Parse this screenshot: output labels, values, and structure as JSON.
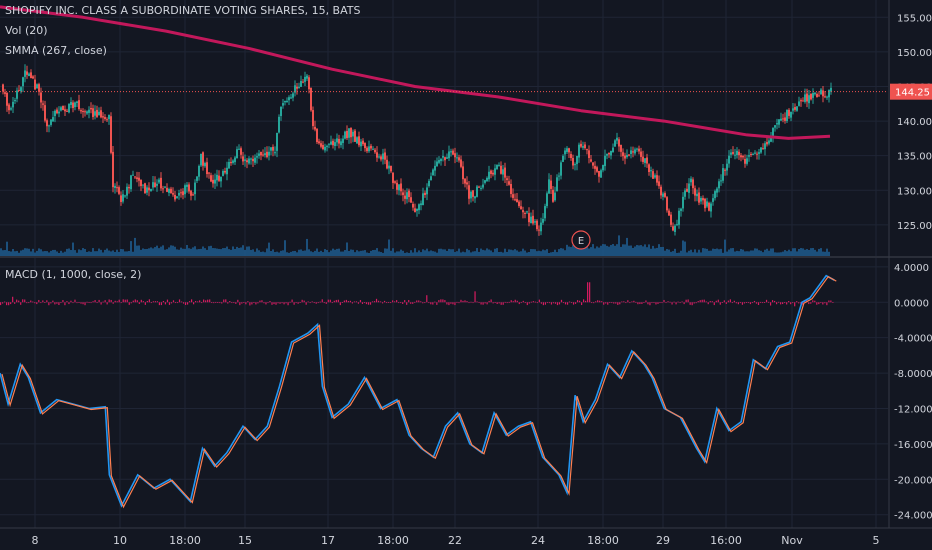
{
  "title": "SHOPIFY INC. CLASS A SUBORDINATE VOTING SHARES, 15, BATS",
  "indicators": {
    "volume": "Vol (20)",
    "smma": "SMMA (267, close)",
    "macd": "MACD (1, 1000, close, 2)"
  },
  "earnings_marker": "E",
  "colors": {
    "background": "#131722",
    "up": "#26a69a",
    "down": "#ef5350",
    "smma": "#c2185b",
    "volume": "#1e5a8c",
    "macd_line": "#2196f3",
    "signal_line": "#ff7f50",
    "histogram": "#d81b60",
    "price_label_bg": "#ef5350",
    "axis_text": "#d1d4dc"
  },
  "chart_data": [
    {
      "type": "candlestick",
      "title": "SHOPIFY INC. CLASS A SUBORDINATE VOTING SHARES, 15, BATS",
      "x_ticks": [
        "8",
        "10",
        "18:00",
        "15",
        "17",
        "18:00",
        "22",
        "24",
        "18:00",
        "29",
        "16:00",
        "Nov",
        "5"
      ],
      "y_ticks": [
        "155.00",
        "150.00",
        "145.00",
        "140.00",
        "135.00",
        "130.00",
        "125.00"
      ],
      "ylim": [
        120.5,
        157.5
      ],
      "last_price": "144.25",
      "close_path": [
        [
          0,
          145.2
        ],
        [
          0.01,
          142.0
        ],
        [
          0.03,
          147.0
        ],
        [
          0.045,
          144.5
        ],
        [
          0.055,
          139.5
        ],
        [
          0.07,
          141.5
        ],
        [
          0.09,
          142.5
        ],
        [
          0.11,
          141.0
        ],
        [
          0.13,
          140.5
        ],
        [
          0.135,
          131.0
        ],
        [
          0.145,
          128.5
        ],
        [
          0.16,
          132.5
        ],
        [
          0.175,
          130.0
        ],
        [
          0.19,
          131.0
        ],
        [
          0.2,
          130.0
        ],
        [
          0.21,
          129.0
        ],
        [
          0.225,
          130.5
        ],
        [
          0.23,
          128.5
        ],
        [
          0.24,
          135.0
        ],
        [
          0.255,
          131.0
        ],
        [
          0.27,
          133.0
        ],
        [
          0.285,
          135.5
        ],
        [
          0.3,
          134.0
        ],
        [
          0.315,
          135.0
        ],
        [
          0.33,
          136.0
        ],
        [
          0.335,
          141.0
        ],
        [
          0.35,
          144.0
        ],
        [
          0.37,
          146.5
        ],
        [
          0.375,
          139.5
        ],
        [
          0.385,
          136.0
        ],
        [
          0.4,
          136.5
        ],
        [
          0.42,
          138.5
        ],
        [
          0.43,
          137.0
        ],
        [
          0.44,
          136.0
        ],
        [
          0.46,
          135.0
        ],
        [
          0.475,
          131.0
        ],
        [
          0.49,
          129.0
        ],
        [
          0.5,
          127.0
        ],
        [
          0.51,
          129.5
        ],
        [
          0.525,
          134.0
        ],
        [
          0.54,
          135.5
        ],
        [
          0.55,
          134.5
        ],
        [
          0.565,
          129.0
        ],
        [
          0.58,
          131.0
        ],
        [
          0.6,
          133.5
        ],
        [
          0.61,
          131.5
        ],
        [
          0.62,
          128.0
        ],
        [
          0.64,
          125.5
        ],
        [
          0.65,
          124.5
        ],
        [
          0.66,
          131.0
        ],
        [
          0.665,
          129.0
        ],
        [
          0.68,
          136.5
        ],
        [
          0.69,
          134.0
        ],
        [
          0.7,
          137.0
        ],
        [
          0.71,
          135.0
        ],
        [
          0.72,
          132.0
        ],
        [
          0.73,
          135.0
        ],
        [
          0.74,
          137.5
        ],
        [
          0.75,
          135.0
        ],
        [
          0.765,
          135.5
        ],
        [
          0.78,
          133.5
        ],
        [
          0.795,
          130.0
        ],
        [
          0.805,
          127.0
        ],
        [
          0.81,
          123.5
        ],
        [
          0.82,
          128.0
        ],
        [
          0.83,
          131.5
        ],
        [
          0.84,
          128.5
        ],
        [
          0.855,
          127.5
        ],
        [
          0.865,
          131.0
        ],
        [
          0.88,
          136.0
        ],
        [
          0.895,
          134.0
        ],
        [
          0.91,
          135.0
        ],
        [
          0.925,
          137.5
        ],
        [
          0.94,
          140.0
        ],
        [
          0.95,
          141.5
        ],
        [
          0.965,
          143.0
        ],
        [
          0.98,
          144.0
        ],
        [
          1,
          144.25
        ]
      ],
      "smma": [
        [
          0,
          156.5
        ],
        [
          0.1,
          155.0
        ],
        [
          0.2,
          153.0
        ],
        [
          0.3,
          150.5
        ],
        [
          0.4,
          147.5
        ],
        [
          0.5,
          145.0
        ],
        [
          0.6,
          143.5
        ],
        [
          0.7,
          141.5
        ],
        [
          0.8,
          140.0
        ],
        [
          0.85,
          139.0
        ],
        [
          0.9,
          138.0
        ],
        [
          0.95,
          137.5
        ],
        [
          1,
          137.8
        ]
      ]
    },
    {
      "type": "line",
      "title": "MACD (1, 1000, close, 2)",
      "y_ticks": [
        "4.0000",
        "0.0000",
        "-4.0000",
        "-8.0000",
        "-12.0000",
        "-16.0000",
        "-20.0000",
        "-24.0000"
      ],
      "ylim": [
        -25.5,
        5.0
      ],
      "series": [
        {
          "values": [
            [
              0,
              -8.0
            ],
            [
              0.01,
              -11.5
            ],
            [
              0.025,
              -7.0
            ],
            [
              0.035,
              -8.5
            ],
            [
              0.05,
              -12.5
            ],
            [
              0.07,
              -11.0
            ],
            [
              0.09,
              -11.5
            ],
            [
              0.11,
              -12.0
            ],
            [
              0.13,
              -11.8
            ],
            [
              0.135,
              -19.5
            ],
            [
              0.15,
              -23.0
            ],
            [
              0.17,
              -19.5
            ],
            [
              0.19,
              -21.0
            ],
            [
              0.21,
              -20.0
            ],
            [
              0.225,
              -21.5
            ],
            [
              0.235,
              -22.5
            ],
            [
              0.25,
              -16.5
            ],
            [
              0.265,
              -18.5
            ],
            [
              0.28,
              -17.0
            ],
            [
              0.3,
              -14.0
            ],
            [
              0.315,
              -15.5
            ],
            [
              0.33,
              -14.0
            ],
            [
              0.345,
              -9.5
            ],
            [
              0.36,
              -4.5
            ],
            [
              0.38,
              -3.5
            ],
            [
              0.392,
              -2.5
            ],
            [
              0.398,
              -9.5
            ],
            [
              0.41,
              -13.0
            ],
            [
              0.43,
              -11.5
            ],
            [
              0.45,
              -8.5
            ],
            [
              0.47,
              -12.0
            ],
            [
              0.49,
              -11.0
            ],
            [
              0.505,
              -15.0
            ],
            [
              0.52,
              -16.5
            ],
            [
              0.535,
              -17.5
            ],
            [
              0.55,
              -14.0
            ],
            [
              0.565,
              -12.5
            ],
            [
              0.58,
              -16.0
            ],
            [
              0.595,
              -17.0
            ],
            [
              0.61,
              -12.5
            ],
            [
              0.625,
              -15.0
            ],
            [
              0.64,
              -14.0
            ],
            [
              0.655,
              -13.5
            ],
            [
              0.67,
              -17.5
            ],
            [
              0.69,
              -19.5
            ],
            [
              0.7,
              -21.5
            ],
            [
              0.71,
              -10.5
            ],
            [
              0.72,
              -13.5
            ],
            [
              0.735,
              -11.0
            ],
            [
              0.75,
              -7.0
            ],
            [
              0.765,
              -8.5
            ],
            [
              0.78,
              -5.5
            ],
            [
              0.795,
              -7.0
            ],
            [
              0.805,
              -8.5
            ],
            [
              0.82,
              -12.0
            ],
            [
              0.84,
              -13.0
            ],
            [
              0.86,
              -16.5
            ],
            [
              0.87,
              -18.0
            ],
            [
              0.885,
              -12.0
            ],
            [
              0.9,
              -14.5
            ],
            [
              0.915,
              -13.5
            ],
            [
              0.93,
              -6.5
            ],
            [
              0.945,
              -7.5
            ],
            [
              0.96,
              -5.0
            ],
            [
              0.975,
              -4.5
            ],
            [
              0.99,
              0.0
            ],
            [
              1.0,
              0.5
            ],
            [
              1.02,
              3.0
            ],
            [
              1.03,
              2.5
            ]
          ]
        }
      ]
    }
  ]
}
